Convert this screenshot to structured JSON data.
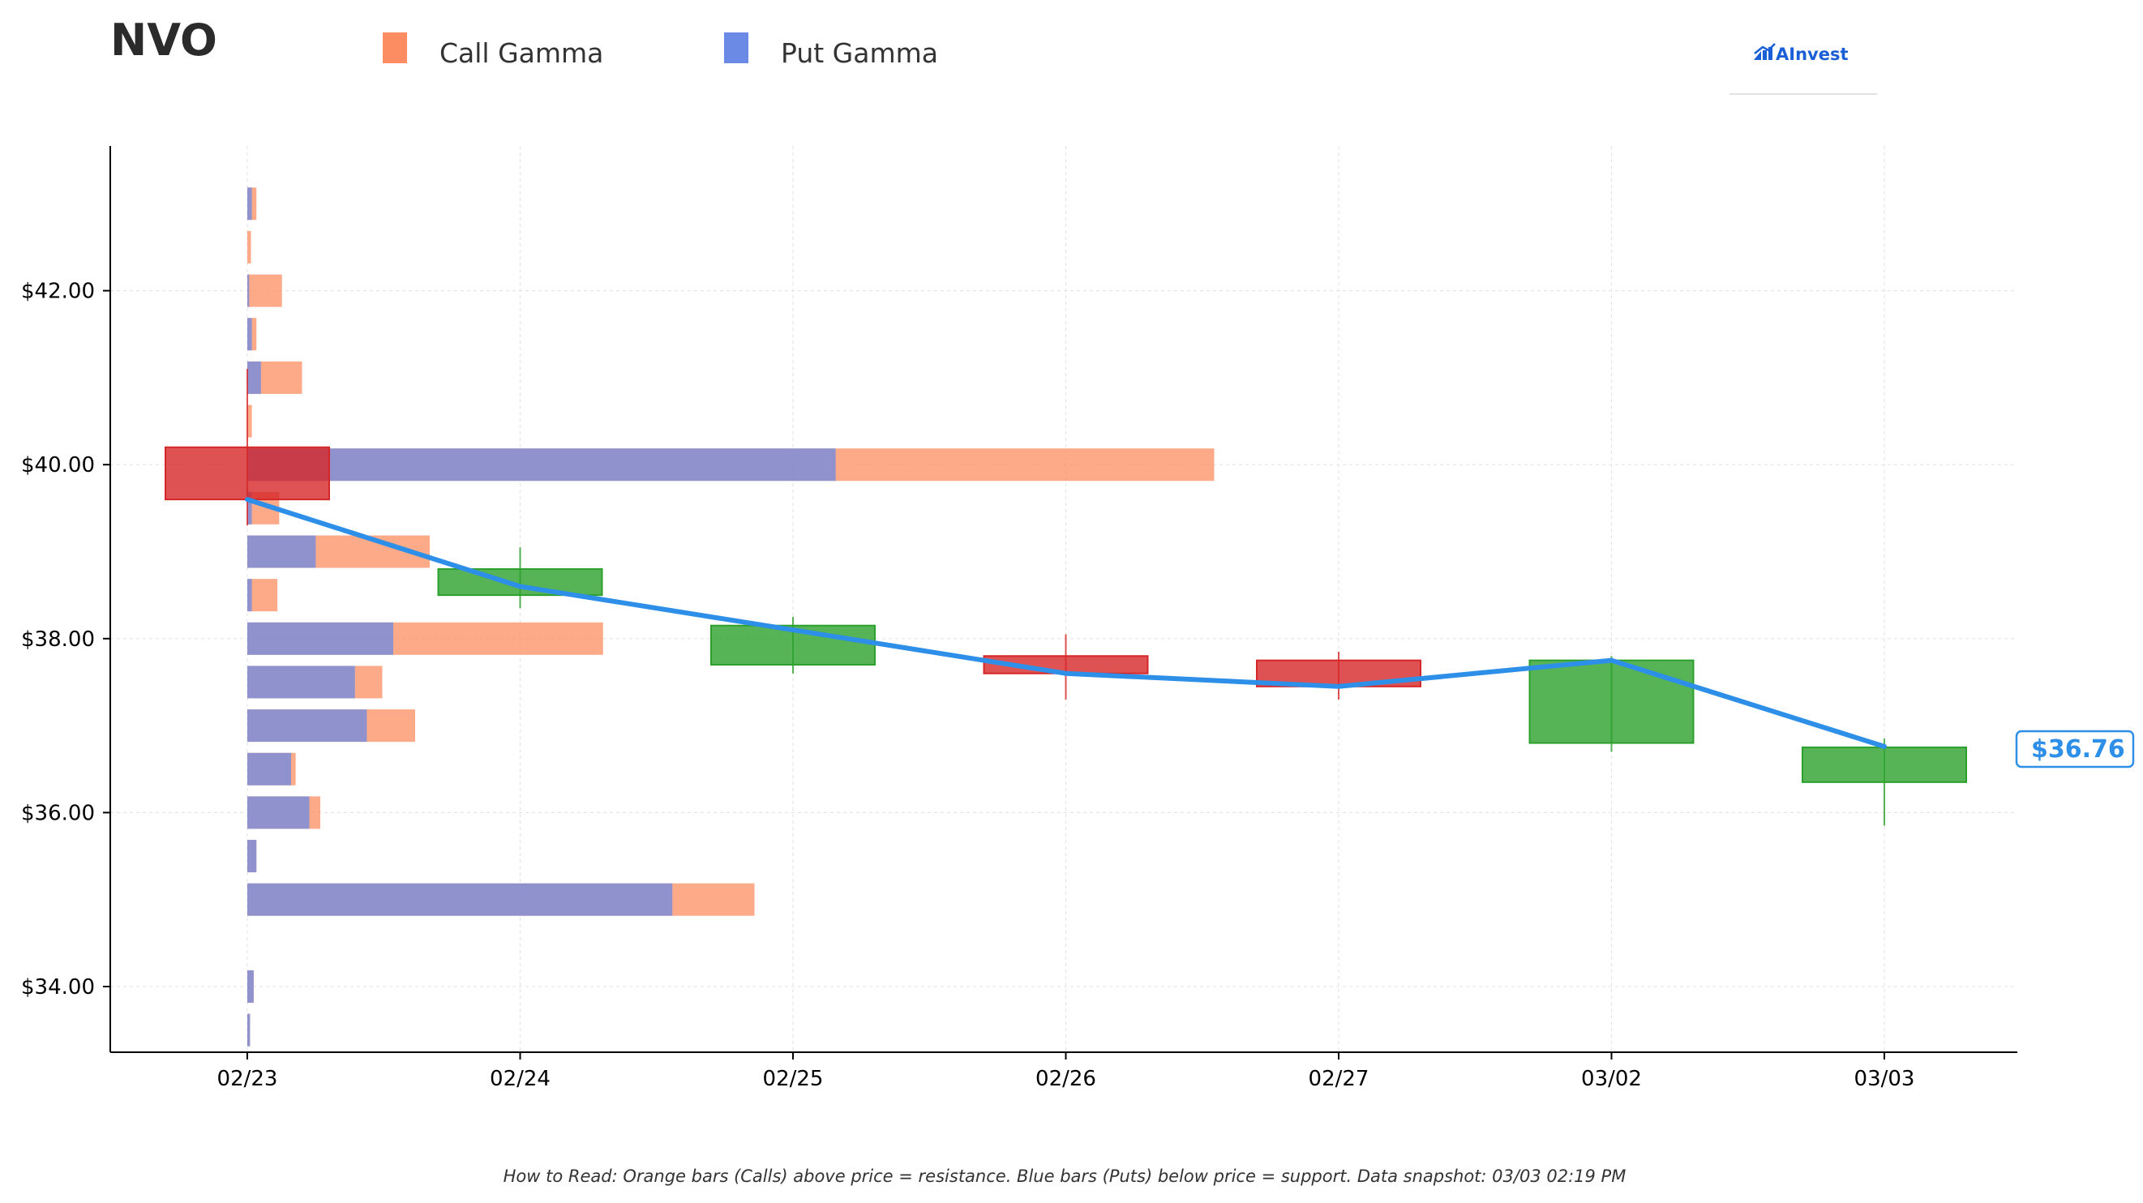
{
  "title": "NVO",
  "legend": [
    {
      "label": "Call Gamma",
      "color": "#fc8d62"
    },
    {
      "label": "Put Gamma",
      "color": "#6b8ae6"
    }
  ],
  "brand": "AInvest",
  "footnote": "How to Read: Orange bars (Calls) above price = resistance. Blue bars (Puts) below price = support. Data snapshot: 03/03 02:19 PM",
  "current_price_label": "$36.76",
  "colors": {
    "call": "#fc8d62",
    "put": "#6b8ae6",
    "up": "#2ca02c",
    "down": "#d62728",
    "price_line": "#2d8fe8"
  },
  "chart_data": {
    "type": "candlestick",
    "x_categories": [
      "02/23",
      "02/24",
      "02/25",
      "02/26",
      "02/27",
      "03/02",
      "03/03"
    ],
    "y_tick_labels": [
      "$34.00",
      "$36.00",
      "$38.00",
      "$40.00",
      "$42.00"
    ],
    "y_ticks": [
      34,
      36,
      38,
      40,
      42
    ],
    "ylim": [
      33.25,
      43.7
    ],
    "grid": true,
    "legend_position": "top",
    "candles": [
      {
        "date": "02/23",
        "open": 40.2,
        "high": 41.1,
        "low": 39.3,
        "close": 39.6
      },
      {
        "date": "02/24",
        "open": 38.5,
        "high": 39.05,
        "low": 38.35,
        "close": 38.8
      },
      {
        "date": "02/25",
        "open": 37.7,
        "high": 38.25,
        "low": 37.6,
        "close": 38.15
      },
      {
        "date": "02/26",
        "open": 37.8,
        "high": 38.05,
        "low": 37.3,
        "close": 37.6
      },
      {
        "date": "02/27",
        "open": 37.75,
        "high": 37.85,
        "low": 37.3,
        "close": 37.45
      },
      {
        "date": "03/02",
        "open": 36.8,
        "high": 37.8,
        "low": 36.7,
        "close": 37.75
      },
      {
        "date": "03/03",
        "open": 36.35,
        "high": 36.85,
        "low": 35.85,
        "close": 36.75
      }
    ],
    "price_line": [
      39.6,
      38.6,
      38.1,
      37.6,
      37.45,
      37.75,
      36.76
    ],
    "gamma_strikes": [
      {
        "strike": 43.0,
        "put": 0.05,
        "call": 0.1
      },
      {
        "strike": 42.5,
        "put": 0.0,
        "call": 0.04
      },
      {
        "strike": 42.0,
        "put": 0.02,
        "call": 0.38
      },
      {
        "strike": 41.5,
        "put": 0.05,
        "call": 0.1
      },
      {
        "strike": 41.0,
        "put": 0.15,
        "call": 0.6
      },
      {
        "strike": 40.5,
        "put": 0.0,
        "call": 0.05
      },
      {
        "strike": 40.0,
        "put": 6.45,
        "call": 10.6
      },
      {
        "strike": 39.5,
        "put": 0.05,
        "call": 0.35
      },
      {
        "strike": 39.0,
        "put": 0.75,
        "call": 2.0
      },
      {
        "strike": 38.5,
        "put": 0.05,
        "call": 0.33
      },
      {
        "strike": 38.0,
        "put": 1.6,
        "call": 3.9
      },
      {
        "strike": 37.5,
        "put": 1.18,
        "call": 1.48
      },
      {
        "strike": 37.0,
        "put": 1.31,
        "call": 1.84
      },
      {
        "strike": 36.5,
        "put": 0.48,
        "call": 0.53
      },
      {
        "strike": 36.0,
        "put": 0.68,
        "call": 0.8
      },
      {
        "strike": 35.5,
        "put": 0.1,
        "call": 0.1
      },
      {
        "strike": 35.0,
        "put": 4.66,
        "call": 5.56
      },
      {
        "strike": 34.0,
        "put": 0.07,
        "call": 0.07
      },
      {
        "strike": 33.5,
        "put": 0.03,
        "call": 0.03
      }
    ]
  }
}
